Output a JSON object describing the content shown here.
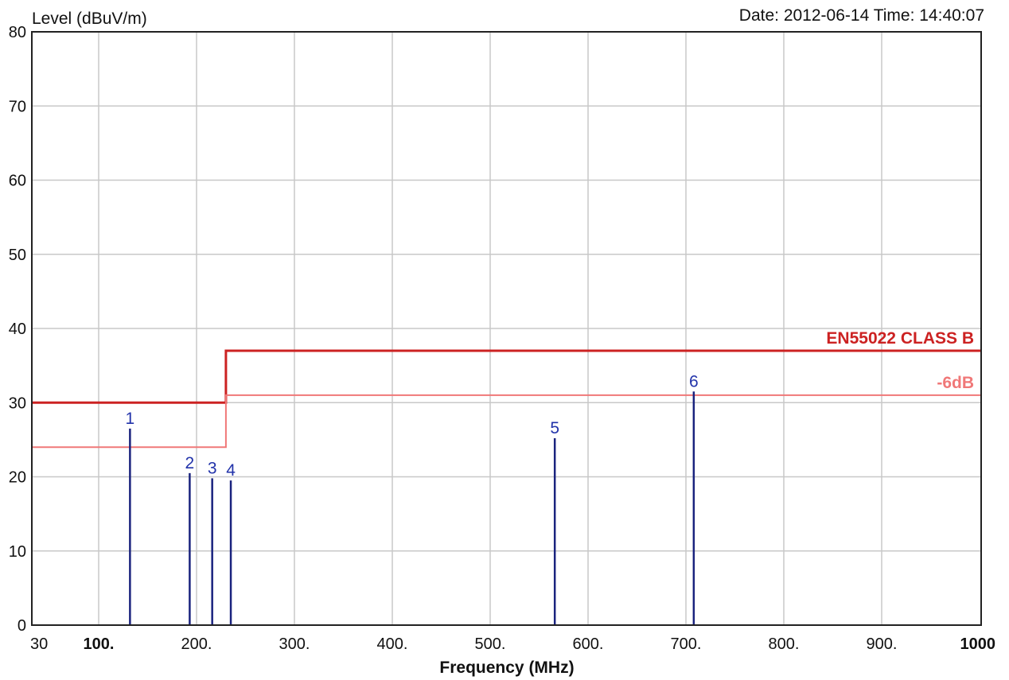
{
  "header": {
    "y_axis_title": "Level (dBuV/m)",
    "timestamp": "Date: 2012-06-14  Time: 14:40:07"
  },
  "chart_data": {
    "type": "line",
    "title": "",
    "xlabel": "Frequency (MHz)",
    "ylabel": "Level (dBuV/m)",
    "xlim": [
      30,
      1000
    ],
    "ylim": [
      0,
      80
    ],
    "grid": true,
    "x_ticks": [
      {
        "value": 30,
        "label": "30"
      },
      {
        "value": 100,
        "label": "100."
      },
      {
        "value": 200,
        "label": "200."
      },
      {
        "value": 300,
        "label": "300."
      },
      {
        "value": 400,
        "label": "400."
      },
      {
        "value": 500,
        "label": "500."
      },
      {
        "value": 600,
        "label": "600."
      },
      {
        "value": 700,
        "label": "700."
      },
      {
        "value": 800,
        "label": "800."
      },
      {
        "value": 900,
        "label": "900."
      },
      {
        "value": 1000,
        "label": "1000"
      }
    ],
    "y_ticks": [
      0,
      10,
      20,
      30,
      40,
      50,
      60,
      70,
      80
    ],
    "limit_lines": [
      {
        "name": "EN55022 CLASS B",
        "color": "#cc2222",
        "points": [
          [
            30,
            30
          ],
          [
            230,
            30
          ],
          [
            230,
            37
          ],
          [
            1000,
            37
          ]
        ]
      },
      {
        "name": "-6dB",
        "color": "#f07878",
        "points": [
          [
            30,
            24
          ],
          [
            230,
            24
          ],
          [
            230,
            31
          ],
          [
            1000,
            31
          ]
        ]
      }
    ],
    "markers": [
      {
        "label": "1",
        "x": 132,
        "y": 26.5
      },
      {
        "label": "2",
        "x": 193,
        "y": 20.5
      },
      {
        "label": "3",
        "x": 216,
        "y": 19.8
      },
      {
        "label": "4",
        "x": 235,
        "y": 19.5
      },
      {
        "label": "5",
        "x": 566,
        "y": 25.2
      },
      {
        "label": "6",
        "x": 708,
        "y": 31.5
      }
    ],
    "marker_color": "#1a237e",
    "marker_label_color": "#2233aa"
  }
}
